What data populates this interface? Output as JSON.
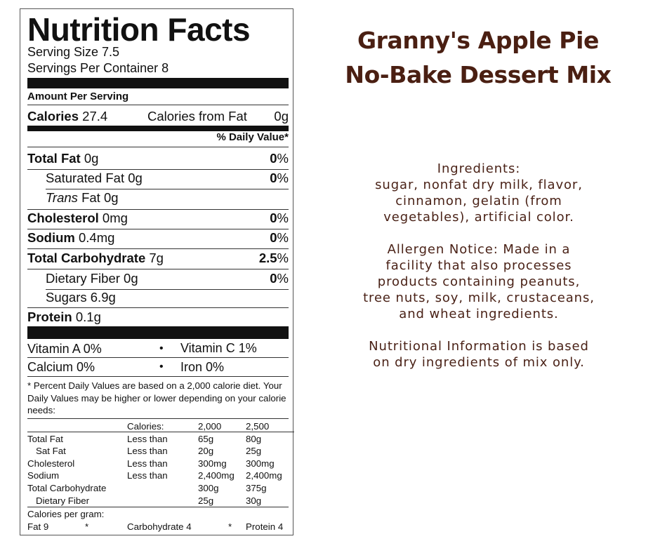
{
  "label": {
    "title": "Nutrition Facts",
    "serving_size": "Serving Size 7.5",
    "servings_per_container": "Servings Per Container 8",
    "amount_per_serving": "Amount Per Serving",
    "calories_label": "Calories",
    "calories_value": "27.4",
    "calories_from_fat_label": "Calories from Fat",
    "calories_from_fat_value": "0g",
    "daily_value_header": "% Daily Value*",
    "nutrients": [
      {
        "name": "Total Fat",
        "amount": "0g",
        "pct": "0",
        "bold": true
      },
      {
        "name": "Saturated Fat",
        "amount": "0g",
        "pct": "0",
        "bold": false
      },
      {
        "name": "Trans",
        "name_suffix": "Fat",
        "amount": "0g",
        "pct": "",
        "bold": false
      },
      {
        "name": "Cholesterol",
        "amount": "0mg",
        "pct": "0",
        "bold": true
      },
      {
        "name": "Sodium",
        "amount": "0.4mg",
        "pct": "0",
        "bold": true
      },
      {
        "name": "Total Carbohydrate",
        "amount": "7g",
        "pct": "2.5",
        "bold": true
      },
      {
        "name": "Dietary Fiber",
        "amount": "0g",
        "pct": "0",
        "bold": false
      },
      {
        "name": "Sugars",
        "amount": "6.9g",
        "pct": "",
        "bold": false
      },
      {
        "name": "Protein",
        "amount": "0.1g",
        "pct": "",
        "bold": true
      }
    ],
    "percent_sign": "%",
    "vitamins": {
      "vitamin_a": "Vitamin A 0%",
      "vitamin_c": "Vitamin C 1%",
      "calcium": "Calcium 0%",
      "iron": "Iron 0%",
      "bullet": "•"
    },
    "footnote": "* Percent Daily Values are based on a 2,000 calorie diet. Your Daily Values may be higher or lower depending on your calorie needs:",
    "dv_table": {
      "header": [
        "",
        "Calories:",
        "2,000",
        "2,500"
      ],
      "rows": [
        [
          "Total Fat",
          "Less than",
          "65g",
          "80g"
        ],
        [
          "Sat Fat",
          "Less than",
          "20g",
          "25g"
        ],
        [
          "Cholesterol",
          "Less than",
          "300mg",
          "300mg"
        ],
        [
          "Sodium",
          "Less than",
          "2,400mg",
          "2,400mg"
        ],
        [
          "Total Carbohydrate",
          "",
          "300g",
          "375g"
        ],
        [
          "Dietary Fiber",
          "",
          "25g",
          "30g"
        ]
      ]
    },
    "calories_per_gram": "Calories per gram:",
    "cpg_fat": "Fat 9",
    "cpg_star1": "*",
    "cpg_carb": "Carbohydrate 4",
    "cpg_star2": "*",
    "cpg_protein": "Protein 4"
  },
  "product": {
    "title_line1": "Granny's Apple Pie",
    "title_line2": "No-Bake Dessert Mix",
    "ingredients_heading": "Ingredients:",
    "ingredients_lines": [
      "sugar, nonfat dry milk, flavor,",
      "cinnamon, gelatin (from",
      "vegetables), artificial color."
    ],
    "allergen_lines": [
      "Allergen Notice: Made in a",
      "facility that also processes",
      "products containing peanuts,",
      "tree nuts, soy, milk, crustaceans,",
      "and wheat ingredients."
    ],
    "nutrition_note_lines": [
      "Nutritional Information is based",
      "on dry ingredients of mix only."
    ]
  },
  "colors": {
    "title": "#4a1f12",
    "body_text": "#4a2217",
    "label_ink": "#111111"
  }
}
